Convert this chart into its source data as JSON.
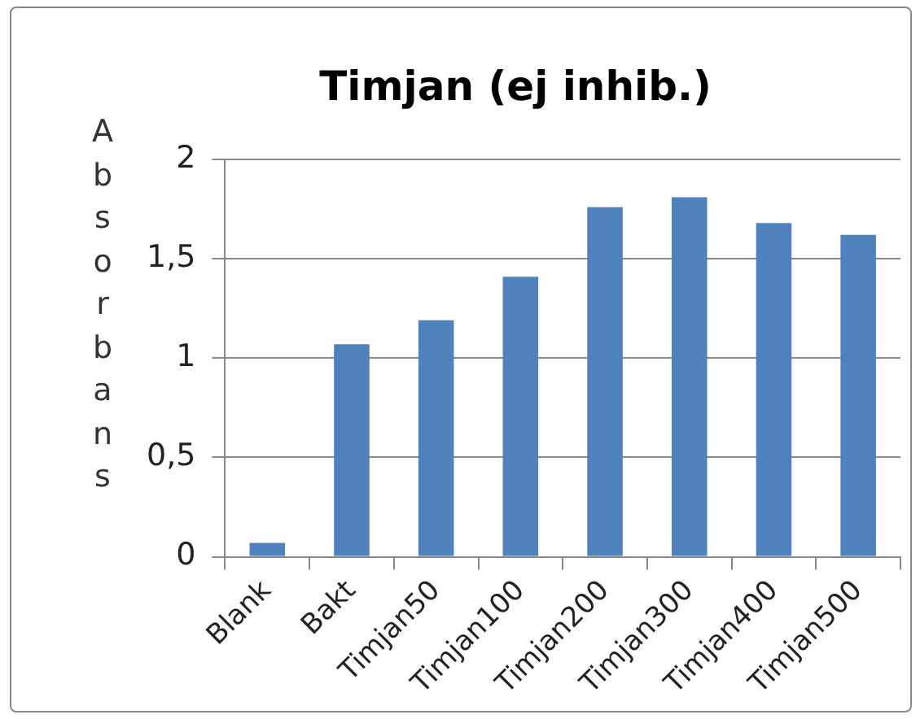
{
  "chart_data": {
    "type": "bar",
    "title": "Timjan (ej inhib.)",
    "ylabel": "Absorbans",
    "categories": [
      "Blank",
      "Bakt",
      "Timjan50",
      "Timjan100",
      "Timjan200",
      "Timjan300",
      "Timjan400",
      "Timjan500"
    ],
    "values": [
      0.07,
      1.07,
      1.19,
      1.41,
      1.76,
      1.81,
      1.68,
      1.62
    ],
    "color": "#4f81bd",
    "ylim": [
      0,
      2
    ],
    "yticks": [
      {
        "value": 0,
        "label": "0"
      },
      {
        "value": 0.5,
        "label": "0,5"
      },
      {
        "value": 1,
        "label": "1"
      },
      {
        "value": 1.5,
        "label": "1,5"
      },
      {
        "value": 2,
        "label": "2"
      }
    ],
    "grid": "y",
    "legend": false
  }
}
